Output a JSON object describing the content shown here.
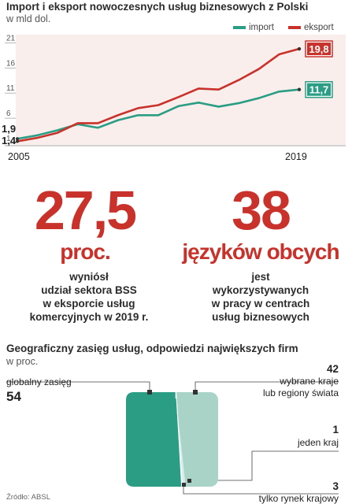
{
  "header": {
    "title": "Import i eksport nowoczesnych usług biznesowych z Polski",
    "subtitle": "w mld dol."
  },
  "legend": {
    "import": "import",
    "eksport": "eksport"
  },
  "colors": {
    "import": "#2a9d84",
    "eksport": "#c8322b",
    "import_light": "#a9d3c6",
    "accent": "#c8322b"
  },
  "chart_data": [
    {
      "type": "line",
      "title": "Import i eksport nowoczesnych usług biznesowych z Polski",
      "ylabel": "w mld dol.",
      "x": [
        2005,
        2006,
        2007,
        2008,
        2009,
        2010,
        2011,
        2012,
        2013,
        2014,
        2015,
        2016,
        2017,
        2018,
        2019
      ],
      "x_tick_labels": [
        "2005",
        "2019"
      ],
      "y_ticks": [
        1,
        6,
        11,
        16,
        21
      ],
      "ylim": [
        1,
        22
      ],
      "grid": false,
      "legend_position": "top-right",
      "series": [
        {
          "name": "import",
          "values": [
            1.9,
            2.6,
            3.6,
            4.8,
            4.1,
            5.6,
            6.6,
            6.6,
            8.4,
            9.1,
            8.3,
            9.0,
            10.0,
            11.3,
            11.7
          ],
          "start_label": "1,9",
          "end_label": "11,7"
        },
        {
          "name": "eksport",
          "values": [
            1.4,
            2.1,
            3.1,
            5.0,
            5.0,
            6.6,
            8.0,
            8.6,
            10.2,
            11.9,
            11.7,
            13.6,
            15.8,
            18.7,
            19.8
          ],
          "start_label": "1,4",
          "end_label": "19,8"
        }
      ]
    },
    {
      "type": "bar",
      "title": "Geograficzny zasięg usług, odpowiedzi największych firm",
      "ylabel": "w proc.",
      "categories": [
        "globalny zasięg",
        "wybrane kraje lub regiony świata",
        "jeden kraj",
        "tylko rynek krajowy"
      ],
      "values": [
        54,
        42,
        1,
        3
      ],
      "value_labels": [
        "54",
        "42",
        "1",
        "3"
      ]
    }
  ],
  "stats": [
    {
      "value": "27,5",
      "unit": "proc.",
      "desc": [
        "wyniósł",
        "udział sektora BSS",
        "w eksporcie usług",
        "komercyjnych w 2019 r."
      ]
    },
    {
      "value": "38",
      "unit": "języków obcych",
      "desc": [
        "jest",
        "wykorzystywanych",
        "w pracy w centrach",
        "usług biznesowych"
      ]
    }
  ],
  "section2": {
    "title": "Geograficzny zasięg usług, odpowiedzi największych firm",
    "subtitle": "w proc.",
    "labels": {
      "global": "globalny zasięg",
      "selected": [
        "wybrane kraje",
        "lub regiony świata"
      ],
      "one": "jeden kraj",
      "domestic": "tylko rynek krajowy"
    }
  },
  "source": "Źródło: ABSL"
}
